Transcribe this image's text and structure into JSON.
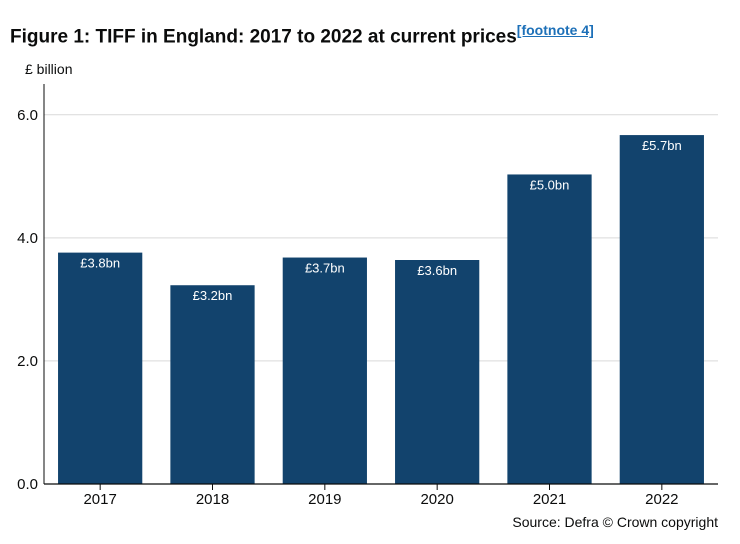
{
  "title": {
    "text": "Figure 1: TIFF in England: 2017 to 2022 at current prices",
    "footnote_label": "[footnote 4]"
  },
  "chart_data": {
    "type": "bar",
    "categories": [
      "2017",
      "2018",
      "2019",
      "2020",
      "2021",
      "2022"
    ],
    "values": [
      3.76,
      3.23,
      3.68,
      3.64,
      5.03,
      5.67
    ],
    "data_labels": [
      "£3.8bn",
      "£3.2bn",
      "£3.7bn",
      "£3.6bn",
      "£5.0bn",
      "£5.7bn"
    ],
    "ylabel": "£ billion",
    "ylim": [
      0,
      6.5
    ],
    "yticks": [
      0,
      2,
      4,
      6
    ],
    "ytick_labels": [
      "0.0",
      "2.0",
      "4.0",
      "6.0"
    ],
    "grid": true,
    "bar_color": "#12436d",
    "label_color": "#ffffff",
    "source": "Source: Defra © Crown copyright"
  }
}
